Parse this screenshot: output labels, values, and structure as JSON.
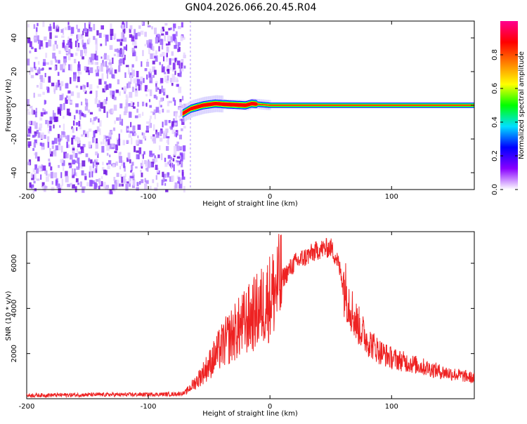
{
  "title": "GN04.2026.066.20.45.R04",
  "colorbar": {
    "label": "Normalized spectral amplitude",
    "ticks": [
      "0.0",
      "0.2",
      "0.4",
      "0.6",
      "0.8"
    ],
    "tick_values": [
      0.0,
      0.2,
      0.4,
      0.6,
      0.8
    ],
    "colors": [
      "#ffffff",
      "#8800ff",
      "#0000ff",
      "#00e0ff",
      "#00ff00",
      "#ffff00",
      "#ff8000",
      "#ff0000",
      "#ff0090"
    ]
  },
  "chart_data": [
    {
      "type": "heatmap",
      "xlabel": "Height of straight line (km)",
      "ylabel": "Frequency (Hz)",
      "xlim": [
        -200,
        168
      ],
      "ylim": [
        -50,
        50
      ],
      "x_ticks": [
        -200,
        -100,
        0,
        100
      ],
      "y_ticks": [
        -40,
        -20,
        0,
        20,
        40
      ],
      "x_tick_labels": [
        "-200",
        "-100",
        "0",
        "100"
      ],
      "y_tick_labels": [
        "-40",
        "-20",
        "0",
        "20",
        "40"
      ],
      "noise_region_x": [
        -200,
        -71
      ],
      "signal": {
        "x_start": -72,
        "x_end": 168,
        "center_hz": [
          {
            "x": -72,
            "y": -5
          },
          {
            "x": -65,
            "y": -2
          },
          {
            "x": -55,
            "y": 0
          },
          {
            "x": -45,
            "y": 1
          },
          {
            "x": -35,
            "y": 0.5
          },
          {
            "x": -20,
            "y": 0
          },
          {
            "x": -15,
            "y": 1
          },
          {
            "x": 0,
            "y": 0
          },
          {
            "x": 168,
            "y": 0
          }
        ]
      }
    },
    {
      "type": "line",
      "xlabel": "Height of straight line (km)",
      "ylabel": "SNR (10 * v/v)",
      "xlim": [
        -200,
        168
      ],
      "ylim": [
        0,
        7400
      ],
      "x_ticks": [
        -200,
        -100,
        0,
        100
      ],
      "y_ticks": [
        2000,
        4000,
        6000
      ],
      "x_tick_labels": [
        "-200",
        "-100",
        "0",
        "100"
      ],
      "y_tick_labels": [
        "2000",
        "4000",
        "6000"
      ],
      "series": [
        {
          "color": "#ee2222",
          "x": [
            -200,
            -180,
            -160,
            -140,
            -120,
            -100,
            -80,
            -70,
            -60,
            -50,
            -40,
            -30,
            -20,
            -10,
            0,
            10,
            20,
            30,
            40,
            50,
            55,
            60,
            70,
            80,
            90,
            100,
            120,
            140,
            160,
            168
          ],
          "y": [
            150,
            160,
            170,
            180,
            180,
            190,
            200,
            250,
            800,
            1500,
            2300,
            2900,
            3400,
            3900,
            4500,
            5300,
            6000,
            6300,
            6600,
            6700,
            6200,
            5200,
            3500,
            2600,
            2100,
            1800,
            1500,
            1200,
            1000,
            900
          ]
        }
      ]
    }
  ]
}
